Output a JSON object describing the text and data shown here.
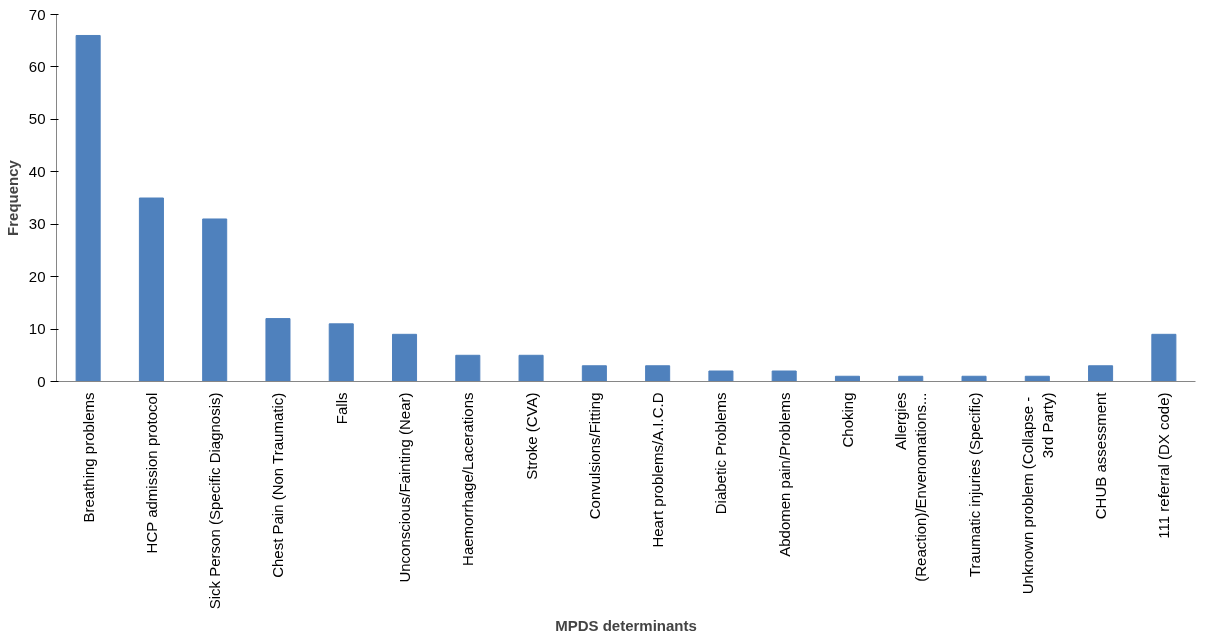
{
  "chart_data": {
    "type": "bar",
    "xlabel": "MPDS determinants",
    "ylabel": "Frequency",
    "categories": [
      "Breathing problems",
      "HCP admission protocol",
      "Sick Person (Specific Diagnosis)",
      "Chest Pain (Non Traumatic)",
      "Falls",
      "Unconscious/Fainting (Near)",
      "Haemorrhage/Lacerations",
      "Stroke (CVA)",
      "Convulsions/Fitting",
      "Heart problems/A.I.C.D",
      "Diabetic Problems",
      "Abdomen pain/Problems",
      "Choking",
      "Allergies\n(Reaction)/Envenomations...",
      "Traumatic injuries (Specific)",
      "Unknown problem  (Collapse -\n3rd Party)",
      "CHUB assessment",
      "111 referral (DX code)"
    ],
    "values": [
      66,
      35,
      31,
      12,
      11,
      9,
      5,
      5,
      3,
      3,
      2,
      2,
      1,
      1,
      1,
      1,
      3,
      9
    ],
    "color": "#4f81bd",
    "ylim": [
      0,
      70
    ],
    "yticks": [
      0,
      10,
      20,
      30,
      40,
      50,
      60,
      70
    ],
    "grid": false
  }
}
